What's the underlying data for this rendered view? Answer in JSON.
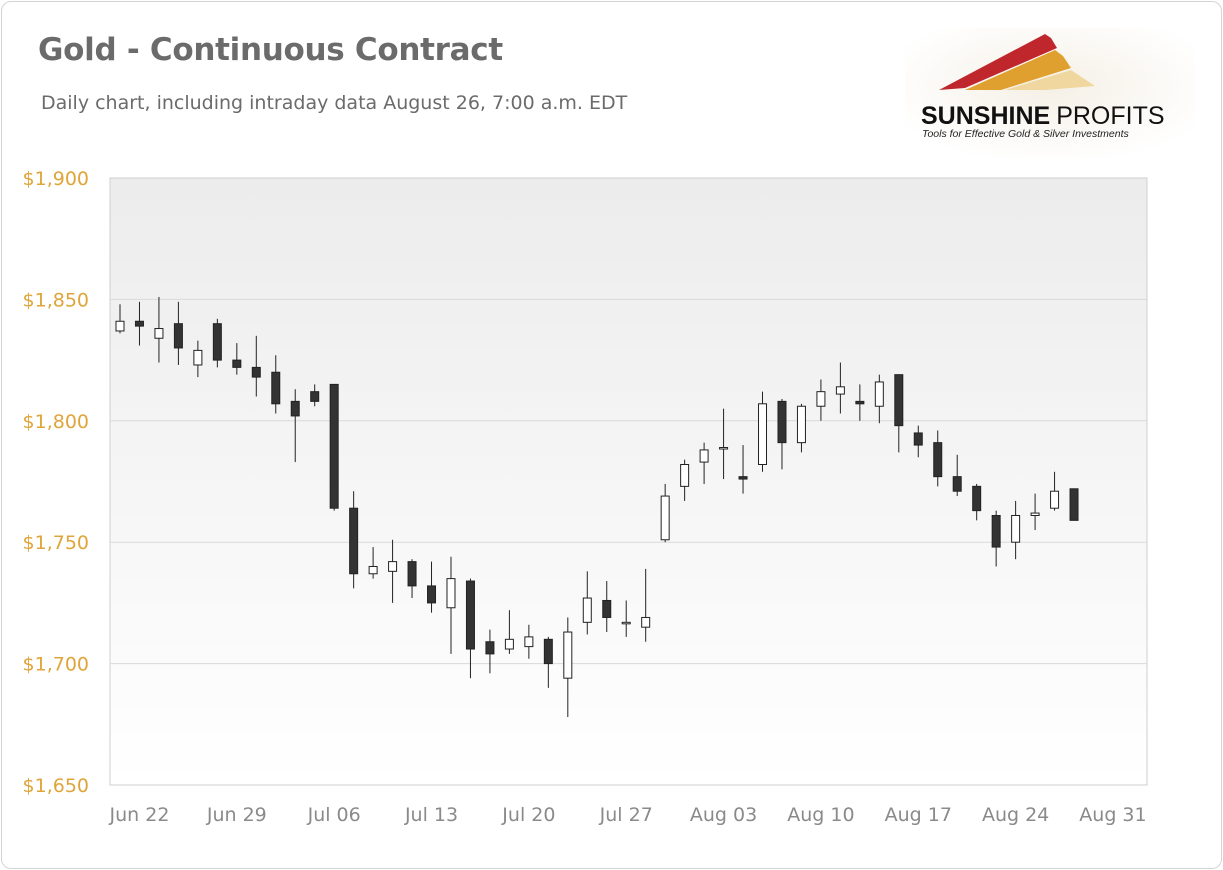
{
  "header": {
    "title": "Gold - Continuous Contract",
    "subtitle": "Daily chart, including intraday data August 26, 7:00 a.m. EDT"
  },
  "logo": {
    "name": "SUNSHINE PROFITS",
    "tagline": "Tools for Effective Gold & Silver Investments",
    "colors": [
      "#c0272d",
      "#e0a030",
      "#f0d080"
    ]
  },
  "colors": {
    "axis_label": "#e0a53a",
    "date_label": "#8a8a8a",
    "up_fill": "#ffffff",
    "down_fill": "#333333",
    "grid": "#d9d9d9"
  },
  "chart_data": {
    "type": "candlestick",
    "ylim": [
      1650,
      1900
    ],
    "y_ticks": [
      1650,
      1700,
      1750,
      1800,
      1850,
      1900
    ],
    "y_tick_labels": [
      "$1,650",
      "$1,700",
      "$1,750",
      "$1,800",
      "$1,850",
      "$1,900"
    ],
    "x_ticks": [
      "Jun 22",
      "Jun 29",
      "Jul 06",
      "Jul 13",
      "Jul 20",
      "Jul 27",
      "Aug 03",
      "Aug 10",
      "Aug 17",
      "Aug 24",
      "Aug 31"
    ],
    "grid": true,
    "candles": [
      {
        "date": "Jun 21",
        "open": 1837,
        "high": 1848,
        "low": 1836,
        "close": 1841
      },
      {
        "date": "Jun 22",
        "open": 1841,
        "high": 1849,
        "low": 1831,
        "close": 1839
      },
      {
        "date": "Jun 23",
        "open": 1834,
        "high": 1851,
        "low": 1824,
        "close": 1838
      },
      {
        "date": "Jun 24",
        "open": 1840,
        "high": 1849,
        "low": 1823,
        "close": 1830
      },
      {
        "date": "Jun 25",
        "open": 1823,
        "high": 1833,
        "low": 1818,
        "close": 1829
      },
      {
        "date": "Jun 28",
        "open": 1840,
        "high": 1842,
        "low": 1822,
        "close": 1825
      },
      {
        "date": "Jun 29",
        "open": 1825,
        "high": 1832,
        "low": 1819,
        "close": 1822
      },
      {
        "date": "Jun 30",
        "open": 1822,
        "high": 1835,
        "low": 1810,
        "close": 1818
      },
      {
        "date": "Jul 01",
        "open": 1820,
        "high": 1827,
        "low": 1803,
        "close": 1807
      },
      {
        "date": "Jul 02",
        "open": 1808,
        "high": 1813,
        "low": 1783,
        "close": 1802
      },
      {
        "date": "Jul 05",
        "open": 1812,
        "high": 1815,
        "low": 1806,
        "close": 1808
      },
      {
        "date": "Jul 06",
        "open": 1815,
        "high": 1815,
        "low": 1763,
        "close": 1764
      },
      {
        "date": "Jul 07",
        "open": 1764,
        "high": 1771,
        "low": 1731,
        "close": 1737
      },
      {
        "date": "Jul 08",
        "open": 1737,
        "high": 1748,
        "low": 1735,
        "close": 1740
      },
      {
        "date": "Jul 09",
        "open": 1738,
        "high": 1751,
        "low": 1725,
        "close": 1742
      },
      {
        "date": "Jul 12",
        "open": 1742,
        "high": 1743,
        "low": 1727,
        "close": 1732
      },
      {
        "date": "Jul 13",
        "open": 1732,
        "high": 1742,
        "low": 1721,
        "close": 1725
      },
      {
        "date": "Jul 14",
        "open": 1723,
        "high": 1744,
        "low": 1704,
        "close": 1735
      },
      {
        "date": "Jul 15",
        "open": 1734,
        "high": 1735,
        "low": 1694,
        "close": 1706
      },
      {
        "date": "Jul 16",
        "open": 1709,
        "high": 1714,
        "low": 1696,
        "close": 1704
      },
      {
        "date": "Jul 19",
        "open": 1706,
        "high": 1722,
        "low": 1704,
        "close": 1710
      },
      {
        "date": "Jul 20",
        "open": 1707,
        "high": 1716,
        "low": 1702,
        "close": 1711
      },
      {
        "date": "Jul 21",
        "open": 1710,
        "high": 1711,
        "low": 1690,
        "close": 1700
      },
      {
        "date": "Jul 22",
        "open": 1694,
        "high": 1719,
        "low": 1678,
        "close": 1713
      },
      {
        "date": "Jul 23",
        "open": 1717,
        "high": 1738,
        "low": 1712,
        "close": 1727
      },
      {
        "date": "Jul 26",
        "open": 1726,
        "high": 1734,
        "low": 1713,
        "close": 1719
      },
      {
        "date": "Jul 27",
        "open": 1717,
        "high": 1726,
        "low": 1711,
        "close": 1717
      },
      {
        "date": "Jul 28",
        "open": 1715,
        "high": 1739,
        "low": 1709,
        "close": 1719
      },
      {
        "date": "Jul 29",
        "open": 1751,
        "high": 1774,
        "low": 1750,
        "close": 1769
      },
      {
        "date": "Jul 30",
        "open": 1773,
        "high": 1784,
        "low": 1767,
        "close": 1782
      },
      {
        "date": "Aug 02",
        "open": 1783,
        "high": 1791,
        "low": 1774,
        "close": 1788
      },
      {
        "date": "Aug 03",
        "open": 1789,
        "high": 1805,
        "low": 1776,
        "close": 1789
      },
      {
        "date": "Aug 04",
        "open": 1777,
        "high": 1790,
        "low": 1770,
        "close": 1776
      },
      {
        "date": "Aug 05",
        "open": 1782,
        "high": 1812,
        "low": 1779,
        "close": 1807
      },
      {
        "date": "Aug 06",
        "open": 1808,
        "high": 1809,
        "low": 1780,
        "close": 1791
      },
      {
        "date": "Aug 09",
        "open": 1791,
        "high": 1807,
        "low": 1787,
        "close": 1806
      },
      {
        "date": "Aug 10",
        "open": 1806,
        "high": 1817,
        "low": 1800,
        "close": 1812
      },
      {
        "date": "Aug 11",
        "open": 1811,
        "high": 1824,
        "low": 1803,
        "close": 1814
      },
      {
        "date": "Aug 12",
        "open": 1808,
        "high": 1815,
        "low": 1800,
        "close": 1807
      },
      {
        "date": "Aug 13",
        "open": 1806,
        "high": 1819,
        "low": 1799,
        "close": 1816
      },
      {
        "date": "Aug 16",
        "open": 1819,
        "high": 1819,
        "low": 1787,
        "close": 1798
      },
      {
        "date": "Aug 17",
        "open": 1795,
        "high": 1798,
        "low": 1785,
        "close": 1790
      },
      {
        "date": "Aug 18",
        "open": 1791,
        "high": 1796,
        "low": 1773,
        "close": 1777
      },
      {
        "date": "Aug 19",
        "open": 1777,
        "high": 1786,
        "low": 1769,
        "close": 1771
      },
      {
        "date": "Aug 20",
        "open": 1773,
        "high": 1774,
        "low": 1759,
        "close": 1763
      },
      {
        "date": "Aug 23",
        "open": 1761,
        "high": 1763,
        "low": 1740,
        "close": 1748
      },
      {
        "date": "Aug 24",
        "open": 1750,
        "high": 1767,
        "low": 1743,
        "close": 1761
      },
      {
        "date": "Aug 25",
        "open": 1761,
        "high": 1770,
        "low": 1755,
        "close": 1762
      },
      {
        "date": "Aug 26",
        "open": 1764,
        "high": 1779,
        "low": 1763,
        "close": 1771
      },
      {
        "date": "Aug 27",
        "open": 1772,
        "high": 1772,
        "low": 1759,
        "close": 1759
      }
    ]
  }
}
